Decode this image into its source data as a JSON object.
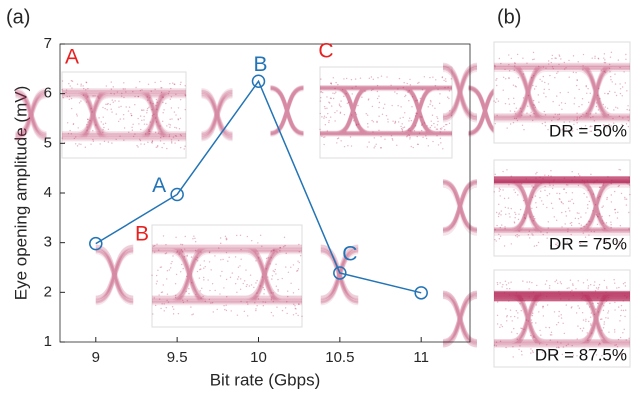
{
  "chart_data": {
    "type": "line",
    "panel_label": "(a)",
    "x_label": "Bit rate (Gbps)",
    "y_label": "Eye opening amplitude (mV)",
    "x": [
      9,
      9.5,
      10,
      10.5,
      11
    ],
    "series": [
      {
        "color": "#2274b6",
        "values": [
          2.98,
          3.97,
          6.25,
          2.39,
          1.99
        ]
      }
    ],
    "point_labels": [
      null,
      "A",
      "B",
      "C",
      null
    ],
    "inset_labels": [
      "A",
      "B",
      "C"
    ],
    "xlim": [
      8.78,
      11.3
    ],
    "ylim": [
      1,
      7
    ],
    "xticks": [
      9,
      9.5,
      10,
      10.5,
      11
    ],
    "yticks": [
      1,
      2,
      3,
      4,
      5,
      6,
      7
    ],
    "side_panel": {
      "label": "(b)",
      "captions": [
        "DR = 50%",
        "DR = 75%",
        "DR = 87.5%"
      ]
    }
  }
}
